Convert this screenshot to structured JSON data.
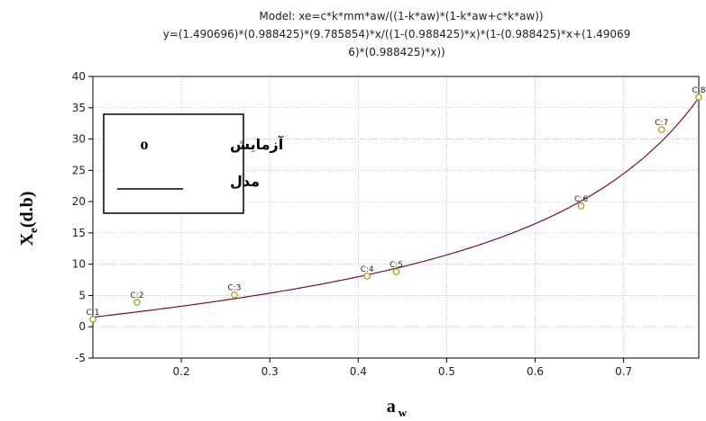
{
  "chart_data": {
    "type": "scatter",
    "title_lines": [
      "Model: xe=c*k*mm*aw/((1-k*aw)*(1-k*aw+c*k*aw))",
      "y=(1.490696)*(0.988425)*(9.785854)*x/((1-(0.988425)*x)*(1-(0.988425)*x+(1.49069",
      "6)*(0.988425)*x))"
    ],
    "xlabel_main": "a",
    "xlabel_sub": "w",
    "ylabel_main": "X",
    "ylabel_sub": "e",
    "ylabel_suffix": "(d.b)",
    "xlim": [
      0.1,
      0.785
    ],
    "ylim": [
      -5,
      40
    ],
    "xticks": [
      0.2,
      0.3,
      0.4,
      0.5,
      0.6,
      0.7
    ],
    "yticks": [
      -5,
      0,
      5,
      10,
      15,
      20,
      25,
      30,
      35,
      40
    ],
    "grid": true,
    "legend_position": "top-left",
    "legend": [
      {
        "label": "آزمایش",
        "marker": "o"
      },
      {
        "label": "مدل",
        "marker": "line"
      }
    ],
    "model": {
      "c": 1.490696,
      "k": 0.988425,
      "mm": 9.785854
    },
    "points": [
      {
        "label": "C:1",
        "x": 0.1,
        "y": 1.2
      },
      {
        "label": "C:2",
        "x": 0.15,
        "y": 3.9
      },
      {
        "label": "C:3",
        "x": 0.26,
        "y": 5.1
      },
      {
        "label": "C:4",
        "x": 0.41,
        "y": 8.1
      },
      {
        "label": "C:5",
        "x": 0.443,
        "y": 8.8
      },
      {
        "label": "C:6",
        "x": 0.652,
        "y": 19.3
      },
      {
        "label": "C:7",
        "x": 0.743,
        "y": 31.5
      },
      {
        "label": "C:8",
        "x": 0.785,
        "y": 36.7
      }
    ],
    "colors": {
      "curve": "#7a1028",
      "point": "#a89a00",
      "grid": "#b0b0b0"
    }
  }
}
